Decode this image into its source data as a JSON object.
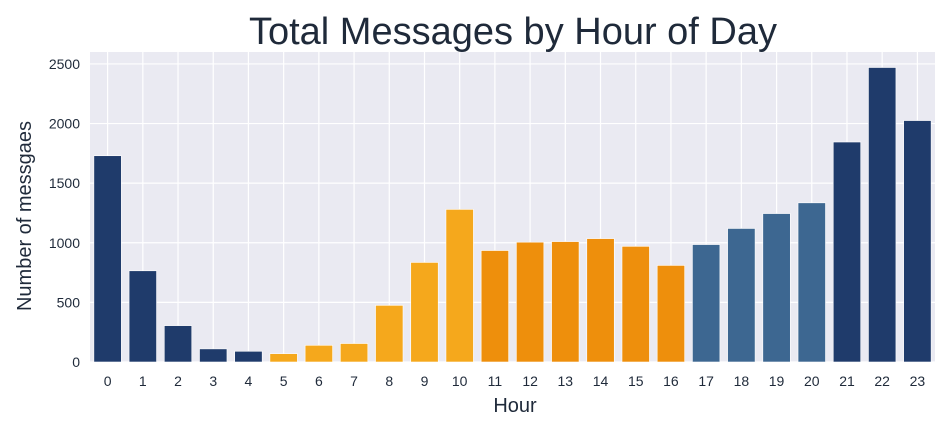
{
  "chart_data": {
    "type": "bar",
    "title": "Total Messages by Hour of Day",
    "xlabel": "Hour",
    "ylabel": "Number of messgaes",
    "categories": [
      "0",
      "1",
      "2",
      "3",
      "4",
      "5",
      "6",
      "7",
      "8",
      "9",
      "10",
      "11",
      "12",
      "13",
      "14",
      "15",
      "16",
      "17",
      "18",
      "19",
      "20",
      "21",
      "22",
      "23"
    ],
    "values": [
      1730,
      765,
      305,
      110,
      90,
      70,
      140,
      155,
      475,
      835,
      1280,
      935,
      1005,
      1010,
      1035,
      970,
      810,
      985,
      1120,
      1245,
      1335,
      1845,
      2470,
      2025
    ],
    "bar_colors": [
      "#1f3b6b",
      "#1f3b6b",
      "#1f3b6b",
      "#1f3b6b",
      "#1f3b6b",
      "#f5a81c",
      "#f5a81c",
      "#f5a81c",
      "#f5a81c",
      "#f5a81c",
      "#f5a81c",
      "#ee8f0c",
      "#ee8f0c",
      "#ee8f0c",
      "#ee8f0c",
      "#ee8f0c",
      "#ee8f0c",
      "#3d6791",
      "#3d6791",
      "#3d6791",
      "#3d6791",
      "#1f3b6b",
      "#1f3b6b",
      "#1f3b6b"
    ],
    "yticks": [
      0,
      500,
      1000,
      1500,
      2000,
      2500
    ],
    "ylim": [
      0,
      2600
    ],
    "grid": true,
    "legend": "none",
    "background_color": "#eaeaf2",
    "grid_color": "#ffffff"
  }
}
